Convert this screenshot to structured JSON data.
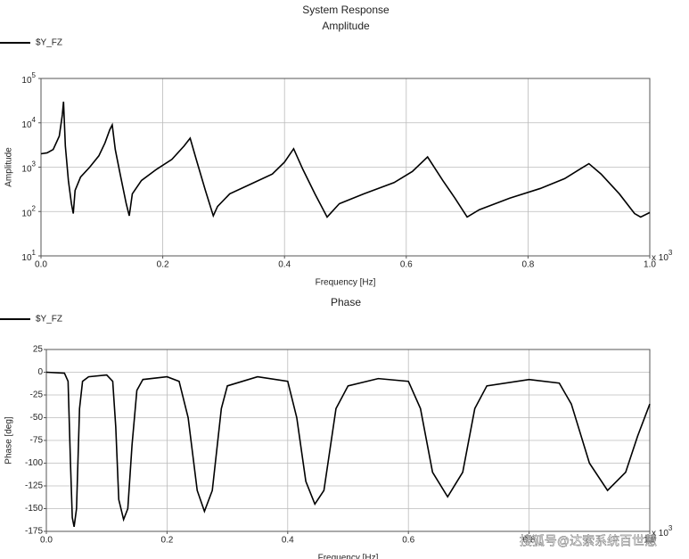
{
  "chart_data": [
    {
      "type": "line",
      "title": "System Response",
      "subtitle": "Amplitude",
      "xlabel": "Frequency [Hz]",
      "ylabel": "Amplitude",
      "x_scale_label": "x 10",
      "x_scale_exponent": "3",
      "yscale": "log",
      "grid": true,
      "xlim": [
        0,
        1
      ],
      "ylim": [
        10,
        100000
      ],
      "xticks": [
        {
          "value": 0,
          "label": "0.0"
        },
        0.2,
        0.4,
        0.6,
        0.8,
        {
          "value": 1,
          "label": "1.0"
        }
      ],
      "yticks": [
        {
          "value": 10,
          "label": "10",
          "exponent": "1"
        },
        {
          "value": 100,
          "label": "10",
          "exponent": "2"
        },
        {
          "value": 1000,
          "label": "10",
          "exponent": "3"
        },
        {
          "value": 10000,
          "label": "10",
          "exponent": "4"
        },
        {
          "value": 100000,
          "label": "10",
          "exponent": "5"
        }
      ],
      "x": [
        0,
        0.01,
        0.02,
        0.03,
        0.035,
        0.037,
        0.04,
        0.045,
        0.05,
        0.053,
        0.056,
        0.065,
        0.08,
        0.095,
        0.105,
        0.113,
        0.117,
        0.122,
        0.13,
        0.14,
        0.145,
        0.15,
        0.165,
        0.19,
        0.215,
        0.235,
        0.245,
        0.255,
        0.27,
        0.283,
        0.29,
        0.31,
        0.35,
        0.38,
        0.4,
        0.415,
        0.43,
        0.45,
        0.47,
        0.49,
        0.53,
        0.58,
        0.61,
        0.635,
        0.66,
        0.68,
        0.7,
        0.72,
        0.77,
        0.82,
        0.86,
        0.885,
        0.9,
        0.92,
        0.95,
        0.975,
        0.985,
        1.0
      ],
      "series": [
        {
          "name": "$Y_FZ",
          "color": "#000000",
          "values": [
            2000,
            2100,
            2500,
            5000,
            15000,
            30000,
            3000,
            500,
            150,
            90,
            300,
            600,
            1000,
            1800,
            3500,
            7000,
            9000,
            2500,
            700,
            150,
            80,
            250,
            500,
            900,
            1500,
            3000,
            4500,
            1500,
            300,
            80,
            130,
            250,
            450,
            700,
            1300,
            2600,
            900,
            250,
            75,
            150,
            250,
            450,
            800,
            1700,
            500,
            200,
            75,
            110,
            200,
            330,
            550,
            900,
            1200,
            700,
            250,
            90,
            75,
            95
          ]
        }
      ]
    },
    {
      "type": "line",
      "subtitle": "Phase",
      "xlabel": "Frequency [Hz]",
      "ylabel": "Phase [deg]",
      "x_scale_label": "x 10",
      "x_scale_exponent": "3",
      "grid": true,
      "xlim": [
        0,
        1
      ],
      "ylim": [
        -175,
        25
      ],
      "xticks": [
        {
          "value": 0,
          "label": "0.0"
        },
        0.2,
        0.4,
        0.6,
        0.8,
        {
          "value": 1,
          "label": "1.0"
        }
      ],
      "yticks": [
        25,
        0,
        -25,
        -50,
        -75,
        -100,
        -125,
        -150,
        -175
      ],
      "x": [
        0,
        0.03,
        0.036,
        0.04,
        0.043,
        0.046,
        0.05,
        0.055,
        0.06,
        0.07,
        0.1,
        0.11,
        0.115,
        0.12,
        0.128,
        0.135,
        0.142,
        0.15,
        0.16,
        0.2,
        0.22,
        0.235,
        0.25,
        0.262,
        0.275,
        0.29,
        0.3,
        0.35,
        0.4,
        0.415,
        0.43,
        0.445,
        0.46,
        0.48,
        0.5,
        0.55,
        0.6,
        0.62,
        0.64,
        0.665,
        0.69,
        0.71,
        0.73,
        0.8,
        0.85,
        0.87,
        0.9,
        0.93,
        0.96,
        0.98,
        1.0
      ],
      "series": [
        {
          "name": "$Y_FZ",
          "color": "#000000",
          "values": [
            0,
            -1,
            -10,
            -100,
            -160,
            -170,
            -150,
            -40,
            -10,
            -5,
            -3,
            -10,
            -60,
            -140,
            -162,
            -150,
            -80,
            -20,
            -8,
            -5,
            -10,
            -50,
            -130,
            -153,
            -130,
            -40,
            -15,
            -5,
            -10,
            -50,
            -120,
            -145,
            -130,
            -40,
            -15,
            -7,
            -10,
            -40,
            -110,
            -137,
            -110,
            -40,
            -15,
            -8,
            -12,
            -35,
            -100,
            -130,
            -110,
            -70,
            -35
          ]
        }
      ]
    }
  ],
  "watermark": "搜狐号@达索系统百世慧"
}
